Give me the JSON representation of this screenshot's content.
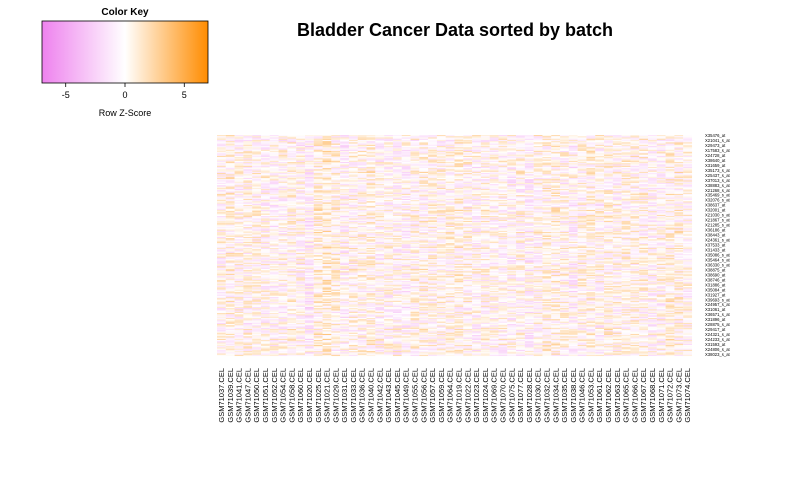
{
  "chart_data": {
    "type": "heatmap",
    "title": "Bladder Cancer Data sorted by batch",
    "color_key": {
      "title": "Color Key",
      "xlabel": "Row Z-Score",
      "ticks": [
        "-5",
        "0",
        "5"
      ],
      "tick_values": [
        -5,
        0,
        5
      ],
      "range": [
        -7,
        7
      ],
      "colors": {
        "low": "#ee82ee",
        "mid": "#ffffff",
        "high": "#ff8c00"
      }
    },
    "columns": [
      "GSM71037.CEL",
      "GSM71039.CEL",
      "GSM71041.CEL",
      "GSM71047.CEL",
      "GSM71050.CEL",
      "GSM71051.CEL",
      "GSM71052.CEL",
      "GSM71054.CEL",
      "GSM71058.CEL",
      "GSM71060.CEL",
      "GSM71020.CEL",
      "GSM71025.CEL",
      "GSM71021.CEL",
      "GSM71029.CEL",
      "GSM71031.CEL",
      "GSM71033.CEL",
      "GSM71036.CEL",
      "GSM71040.CEL",
      "GSM71042.CEL",
      "GSM71043.CEL",
      "GSM71045.CEL",
      "GSM71049.CEL",
      "GSM71055.CEL",
      "GSM71056.CEL",
      "GSM71057.CEL",
      "GSM71059.CEL",
      "GSM71064.CEL",
      "GSM71019.CEL",
      "GSM71022.CEL",
      "GSM71023.CEL",
      "GSM71024.CEL",
      "GSM71069.CEL",
      "GSM71070.CEL",
      "GSM71075.CEL",
      "GSM71077.CEL",
      "GSM71028.CEL",
      "GSM71030.CEL",
      "GSM71032.CEL",
      "GSM71034.CEL",
      "GSM71035.CEL",
      "GSM71038.CEL",
      "GSM71046.CEL",
      "GSM71053.CEL",
      "GSM71061.CEL",
      "GSM71062.CEL",
      "GSM71063.CEL",
      "GSM71065.CEL",
      "GSM71066.CEL",
      "GSM71067.CEL",
      "GSM71068.CEL",
      "GSM71071.CEL",
      "GSM71072.CEL",
      "GSM71073.CEL",
      "GSM71074.CEL"
    ],
    "row_labels": [
      "X35476_at",
      "X21041_s_at",
      "X29473_at",
      "X17583_s_at",
      "X24728_at",
      "X38640_at",
      "X31659_at",
      "X35173_s_at",
      "X25437_s_at",
      "X37013_s_at",
      "X38883_s_at",
      "X21268_s_at",
      "X35469_s_at",
      "X32076_s_at",
      "X38637_at",
      "X32001_at",
      "X21030_s_at",
      "X21867_s_at",
      "X21285_s_at",
      "X36186_at",
      "X38443_at",
      "X24361_s_at",
      "X37533_at",
      "X31433_at",
      "X35086_s_at",
      "X35464_s_at",
      "X36330_s_at",
      "X38875_at",
      "X38690_at",
      "X38746_at",
      "X31886_at",
      "X35084_at",
      "X31927_at",
      "X39693_s_at",
      "X24957_s_at",
      "X31061_at",
      "X36571_s_at",
      "X31896_at",
      "X28875_s_at",
      "X29417_at",
      "X24321_s_at",
      "X24233_s_at",
      "X31593_at",
      "X24806_s_at",
      "X38023_s_at"
    ],
    "n_rows": 180,
    "z_range": [
      -2,
      2
    ]
  }
}
